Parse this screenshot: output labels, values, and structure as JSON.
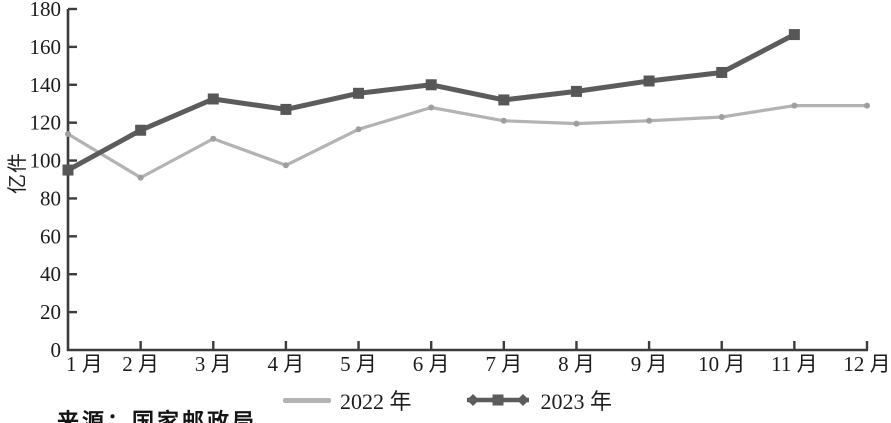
{
  "chart_data": {
    "type": "line",
    "title": "",
    "xlabel": "",
    "ylabel": "亿件",
    "ylim": [
      0,
      180
    ],
    "yticks": [
      0,
      20,
      40,
      60,
      80,
      100,
      120,
      140,
      160,
      180
    ],
    "grid": false,
    "legend_position": "bottom",
    "categories": [
      "1 月",
      "2 月",
      "3 月",
      "4 月",
      "5 月",
      "6 月",
      "7 月",
      "8 月",
      "9 月",
      "10 月",
      "11 月",
      "12 月"
    ],
    "series": [
      {
        "name": "2022 年",
        "color": "#b3b3b3",
        "marker": "dot",
        "marker_color": "#9e9e9e",
        "values": [
          114,
          91,
          111.5,
          97.5,
          116.5,
          128,
          121,
          119.5,
          121,
          123,
          129,
          129
        ]
      },
      {
        "name": "2023 年",
        "color": "#5c5c5c",
        "marker": "square",
        "marker_color": "#575757",
        "values": [
          95,
          116,
          132.5,
          127,
          135.5,
          140,
          132,
          136.5,
          142,
          146.5,
          166.5
        ]
      }
    ],
    "colors": {
      "axis": "#3c3c3c",
      "text": "#1c1c1c"
    }
  },
  "source_note": "来源：国家邮政局"
}
